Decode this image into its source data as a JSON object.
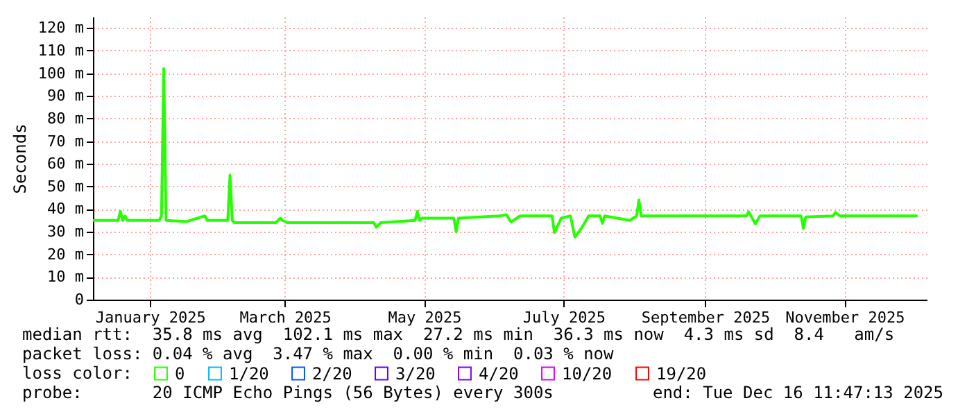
{
  "chart_data": {
    "type": "line",
    "ylabel": "Seconds",
    "legend_title": "loss color:",
    "legend": "bottom",
    "grid": true,
    "xlim": [
      "2024-12-16",
      "2025-12-16"
    ],
    "xticks": [
      {
        "value": "2025-01-10",
        "label": "January 2025"
      },
      {
        "value": "2025-03-10",
        "label": "March 2025"
      },
      {
        "value": "2025-05-10",
        "label": "May 2025"
      },
      {
        "value": "2025-07-10",
        "label": "July 2025"
      },
      {
        "value": "2025-09-10",
        "label": "September 2025"
      },
      {
        "value": "2025-11-10",
        "label": "November 2025"
      }
    ],
    "ylim": [
      0,
      125
    ],
    "yticks": [
      0,
      {
        "value": 10,
        "label": "10 m"
      },
      {
        "value": 20,
        "label": "20 m"
      },
      {
        "value": 30,
        "label": "30 m"
      },
      {
        "value": 40,
        "label": "40 m"
      },
      {
        "value": 50,
        "label": "50 m"
      },
      {
        "value": 60,
        "label": "60 m"
      },
      {
        "value": 70,
        "label": "70 m"
      },
      {
        "value": 80,
        "label": "80 m"
      },
      {
        "value": 90,
        "label": "90 m"
      },
      {
        "value": 100,
        "label": "100 m"
      },
      {
        "value": 110,
        "label": "110 m"
      },
      {
        "value": 120,
        "label": "120 m"
      }
    ],
    "x": [
      "2024-12-16",
      "2024-12-27",
      "2024-12-28",
      "2024-12-29",
      "2024-12-30",
      "2024-12-31",
      "2025-01-14",
      "2025-01-15",
      "2025-01-16",
      "2025-01-17",
      "2025-01-26",
      "2025-02-03",
      "2025-02-04",
      "2025-02-13",
      "2025-02-14",
      "2025-02-15",
      "2025-02-16",
      "2025-03-06",
      "2025-03-08",
      "2025-03-09",
      "2025-03-11",
      "2025-04-06",
      "2025-04-18",
      "2025-04-19",
      "2025-04-21",
      "2025-05-06",
      "2025-05-07",
      "2025-05-08",
      "2025-05-09",
      "2025-05-23",
      "2025-05-24",
      "2025-05-25",
      "2025-06-12",
      "2025-06-15",
      "2025-06-17",
      "2025-06-21",
      "2025-07-05",
      "2025-07-06",
      "2025-07-09",
      "2025-07-13",
      "2025-07-15",
      "2025-07-18",
      "2025-07-21",
      "2025-07-26",
      "2025-07-27",
      "2025-07-28",
      "2025-08-08",
      "2025-08-11",
      "2025-08-12",
      "2025-08-13",
      "2025-09-28",
      "2025-09-29",
      "2025-10-02",
      "2025-10-04",
      "2025-10-22",
      "2025-10-23",
      "2025-10-24",
      "2025-11-05",
      "2025-11-06",
      "2025-11-08",
      "2025-12-12"
    ],
    "series": [
      {
        "name": "0",
        "color": "#26ff00",
        "values": [
          35,
          35,
          39,
          35,
          37,
          35,
          35,
          37,
          102,
          35,
          34.5,
          37,
          35,
          35,
          55,
          35,
          34,
          34,
          36,
          35,
          34,
          34,
          34,
          32,
          34,
          35,
          39,
          35,
          36,
          36,
          30,
          36,
          37,
          37.5,
          34.3,
          37,
          37,
          29.6,
          36,
          37,
          27.6,
          31.8,
          37,
          37,
          33.7,
          37,
          35,
          37,
          44,
          37,
          37,
          38.8,
          33.5,
          37,
          37,
          31.4,
          36.5,
          37,
          38.5,
          37,
          37
        ]
      },
      {
        "name": "1/20",
        "color": "#00b8ff",
        "values": [
          null,
          null,
          null,
          null,
          null,
          null,
          null,
          null,
          null,
          null,
          null,
          null,
          null,
          null,
          null,
          null,
          null,
          null,
          null,
          null,
          null,
          null,
          null,
          null,
          null,
          null,
          null,
          null,
          null,
          null,
          null,
          null,
          null,
          null,
          null,
          null,
          null,
          null,
          null,
          null,
          null,
          null,
          null,
          null,
          null,
          null,
          null,
          null,
          null,
          null,
          null,
          null,
          null,
          null,
          null,
          null,
          null,
          null,
          null,
          null,
          null
        ]
      },
      {
        "name": "2/20",
        "color": "#0059ff",
        "values": [
          null,
          null,
          null,
          null,
          null,
          null,
          null,
          null,
          null,
          null,
          null,
          null,
          null,
          null,
          null,
          null,
          null,
          null,
          null,
          null,
          null,
          null,
          null,
          null,
          null,
          null,
          null,
          null,
          null,
          null,
          null,
          null,
          null,
          null,
          null,
          null,
          null,
          null,
          null,
          null,
          null,
          null,
          null,
          null,
          null,
          null,
          null,
          null,
          null,
          null,
          null,
          null,
          null,
          null,
          null,
          null,
          null,
          null,
          null,
          null,
          null
        ]
      },
      {
        "name": "3/20",
        "color": "#5e00ff",
        "values": [
          null,
          null,
          null,
          null,
          null,
          null,
          null,
          null,
          null,
          null,
          null,
          null,
          null,
          null,
          null,
          null,
          null,
          null,
          null,
          null,
          null,
          null,
          null,
          null,
          null,
          null,
          null,
          null,
          null,
          null,
          null,
          null,
          null,
          null,
          null,
          null,
          null,
          null,
          null,
          null,
          null,
          null,
          null,
          null,
          null,
          null,
          null,
          null,
          null,
          null,
          null,
          null,
          null,
          null,
          null,
          null,
          null,
          null,
          null,
          null,
          null
        ]
      },
      {
        "name": "4/20",
        "color": "#7e00ff",
        "values": [
          null,
          null,
          null,
          null,
          null,
          null,
          null,
          null,
          null,
          null,
          null,
          null,
          null,
          null,
          null,
          null,
          null,
          null,
          null,
          null,
          null,
          null,
          null,
          null,
          null,
          null,
          null,
          null,
          null,
          null,
          null,
          null,
          null,
          null,
          null,
          null,
          null,
          null,
          null,
          null,
          null,
          null,
          null,
          null,
          null,
          null,
          null,
          null,
          null,
          null,
          null,
          null,
          null,
          null,
          null,
          null,
          null,
          null,
          null,
          null,
          null
        ]
      },
      {
        "name": "10/20",
        "color": "#dd00ff",
        "values": [
          null,
          null,
          null,
          null,
          null,
          null,
          null,
          null,
          null,
          null,
          null,
          null,
          null,
          null,
          null,
          null,
          null,
          null,
          null,
          null,
          null,
          null,
          null,
          null,
          null,
          null,
          null,
          null,
          null,
          null,
          null,
          null,
          null,
          null,
          null,
          null,
          null,
          null,
          null,
          null,
          null,
          null,
          null,
          null,
          null,
          null,
          null,
          null,
          null,
          null,
          null,
          null,
          null,
          null,
          null,
          null,
          null,
          null,
          null,
          null,
          null
        ]
      },
      {
        "name": "19/20",
        "color": "#ff0000",
        "values": [
          null,
          null,
          null,
          null,
          null,
          null,
          null,
          null,
          null,
          null,
          null,
          null,
          null,
          null,
          null,
          null,
          null,
          null,
          null,
          null,
          null,
          null,
          null,
          null,
          null,
          null,
          null,
          null,
          null,
          null,
          null,
          null,
          null,
          null,
          null,
          null,
          null,
          null,
          null,
          null,
          null,
          null,
          null,
          null,
          null,
          null,
          null,
          null,
          null,
          null,
          null,
          null,
          null,
          null,
          null,
          null,
          null,
          null,
          null,
          null,
          null
        ]
      }
    ],
    "annotations": [
      "median rtt:  35.8 ms avg  102.1 ms max  27.2 ms min  36.3 ms now  4.3 ms sd  8.4   am/s",
      "packet loss: 0.04 % avg  3.47 % max  0.00 % min  0.03 % now",
      "probe:       20 ICMP Echo Pings (56 Bytes) every 300s",
      "end: Tue Dec 16 11:47:13 2025"
    ]
  }
}
